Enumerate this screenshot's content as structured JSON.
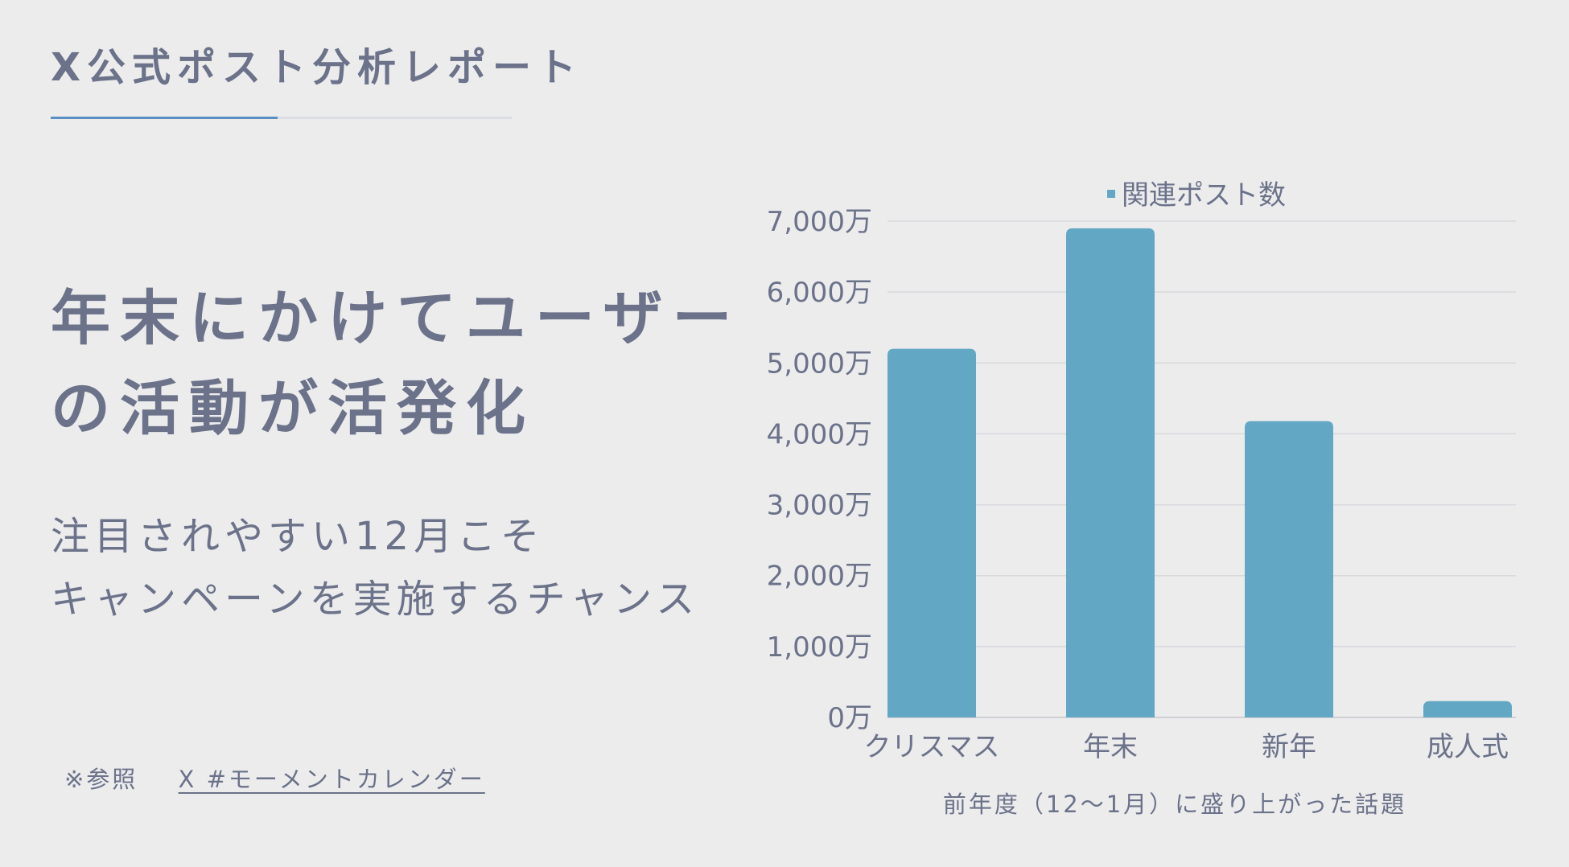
{
  "report": {
    "title": "X公式ポスト分析レポート"
  },
  "headline": {
    "line1": "年末にかけてユーザー",
    "line2": "の活動が活発化"
  },
  "subcopy": {
    "line1": "注目されやすい12月こそ",
    "line2": "キャンペーンを実施するチャンス"
  },
  "source": {
    "prefix": "※参照",
    "link": "X #モーメントカレンダー"
  },
  "colors": {
    "text": "#6b7289",
    "accent": "#5a8fc4",
    "bar": "#62a7c3",
    "grid": "#d8d9dd",
    "background": "#ececed"
  },
  "chart_data": {
    "type": "bar",
    "categories": [
      "クリスマス",
      "年末",
      "新年",
      "成人式"
    ],
    "series": [
      {
        "name": "関連ポスト数",
        "values": [
          5200,
          6900,
          4180,
          230
        ]
      }
    ],
    "unit_suffix": "万",
    "ylim": [
      0,
      7000
    ],
    "yticks": [
      0,
      1000,
      2000,
      3000,
      4000,
      5000,
      6000,
      7000
    ],
    "ytick_labels": [
      "0万",
      "1,000万",
      "2,000万",
      "3,000万",
      "4,000万",
      "5,000万",
      "6,000万",
      "7,000万"
    ],
    "xlabel": "前年度（12〜1月）に盛り上がった話題",
    "ylabel": "",
    "grid": true,
    "legend_position": "top-center"
  }
}
